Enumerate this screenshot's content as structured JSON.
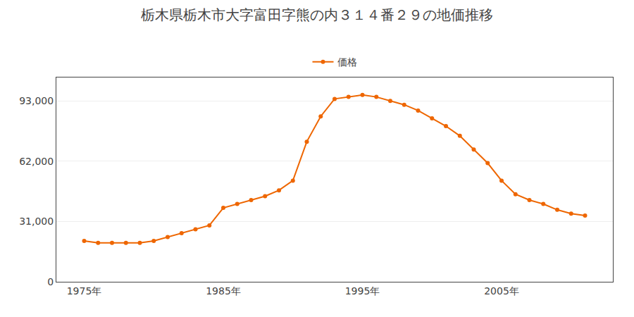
{
  "chart_data": {
    "type": "line",
    "title": "栃木県栃木市大字富田字熊の内３１４番２９の地価推移",
    "x": [
      1975,
      1976,
      1977,
      1978,
      1979,
      1980,
      1981,
      1982,
      1983,
      1984,
      1985,
      1986,
      1987,
      1988,
      1989,
      1990,
      1991,
      1992,
      1993,
      1994,
      1995,
      1996,
      1997,
      1998,
      1999,
      2000,
      2001,
      2002,
      2003,
      2004,
      2005,
      2006,
      2007,
      2008,
      2009,
      2010,
      2011
    ],
    "series": [
      {
        "name": "価格",
        "color": "#ee6600",
        "marker": "circle",
        "values": [
          21000,
          20000,
          20000,
          20000,
          20000,
          21000,
          23000,
          25000,
          27000,
          29000,
          38000,
          40000,
          42000,
          44000,
          47000,
          52000,
          72000,
          85000,
          94000,
          95000,
          96000,
          95000,
          93000,
          91000,
          88000,
          84000,
          80000,
          75000,
          68000,
          61000,
          52000,
          45000,
          42000,
          40000,
          37000,
          35000,
          34000
        ]
      }
    ],
    "xlim": [
      1973,
      2013
    ],
    "xticks": [
      {
        "value": 1975,
        "label": "1975年"
      },
      {
        "value": 1985,
        "label": "1985年"
      },
      {
        "value": 1995,
        "label": "1995年"
      },
      {
        "value": 2005,
        "label": "2005年"
      }
    ],
    "ylim": [
      0,
      105000
    ],
    "yticks": [
      0,
      {
        "value": 31000,
        "label": "31,000"
      },
      {
        "value": 62000,
        "label": "62,000"
      },
      {
        "value": 93000,
        "label": "93,000"
      }
    ],
    "grid": true,
    "legend": "top"
  }
}
